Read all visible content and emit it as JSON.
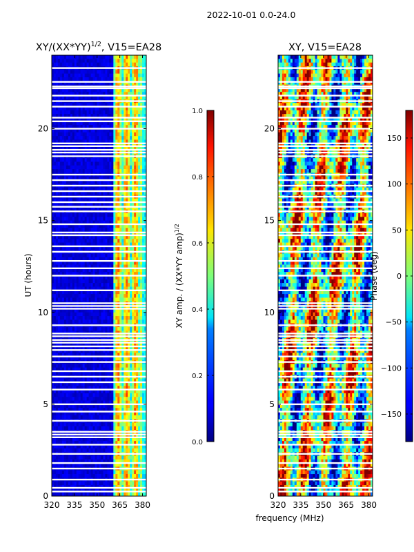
{
  "suptitle": "2022-10-01 0.0-24.0",
  "shared_xlabel": "frequency (MHz)",
  "chart_data": [
    {
      "type": "heatmap",
      "title_main": "XY/(XX*YY)",
      "title_exp": "1/2",
      "title_tail": ", V15=EA28",
      "xlabel": "",
      "ylabel": "UT (hours)",
      "xlim": [
        320,
        382.5
      ],
      "ylim": [
        0,
        24
      ],
      "xticks": [
        320,
        335,
        350,
        365,
        380
      ],
      "yticks": [
        0,
        5,
        10,
        15,
        20
      ],
      "cmap": "jet",
      "colorbar": {
        "label_main": "XY amp. / (XX*YY amp)",
        "label_exp": "1/2",
        "range": [
          0.0,
          1.0
        ],
        "ticks": [
          0.0,
          0.2,
          0.4,
          0.6,
          0.8,
          1.0
        ],
        "tick_labels": [
          "0.0",
          "0.2",
          "0.4",
          "0.6",
          "0.8",
          "1.0"
        ]
      }
    },
    {
      "type": "heatmap",
      "title": "XY, V15=EA28",
      "xlabel": "frequency (MHz)",
      "ylabel": "",
      "xlim": [
        320,
        382.5
      ],
      "ylim": [
        0,
        24
      ],
      "xticks": [
        320,
        335,
        350,
        365,
        380
      ],
      "yticks": [
        0,
        5,
        10,
        15,
        20
      ],
      "cmap": "jet",
      "colorbar": {
        "label": "Phase (deg)",
        "range": [
          -180,
          180
        ],
        "ticks": [
          -150,
          -100,
          -50,
          0,
          50,
          100,
          150
        ],
        "tick_labels": [
          "−150",
          "−100",
          "−50",
          "0",
          "50",
          "100",
          "150"
        ]
      }
    }
  ],
  "flagged_hours": [
    0.25,
    0.45,
    0.9,
    1.5,
    1.8,
    2.3,
    2.8,
    3.2,
    3.35,
    3.5,
    4.1,
    4.6,
    5.0,
    5.8,
    6.2,
    6.5,
    6.8,
    7.3,
    7.6,
    7.95,
    8.15,
    8.35,
    8.5,
    8.7,
    8.85,
    9.3,
    10.2,
    10.35,
    10.5,
    11.2,
    12.0,
    12.4,
    12.8,
    13.3,
    13.6,
    14.2,
    14.35,
    14.8,
    15.5,
    15.75,
    16.0,
    16.3,
    16.6,
    16.9,
    17.2,
    17.5,
    18.5,
    18.7,
    18.85,
    19.05,
    19.2,
    20.0,
    20.4,
    20.6,
    21.2,
    21.5,
    21.8,
    22.2,
    22.3,
    22.55,
    23.3
  ]
}
